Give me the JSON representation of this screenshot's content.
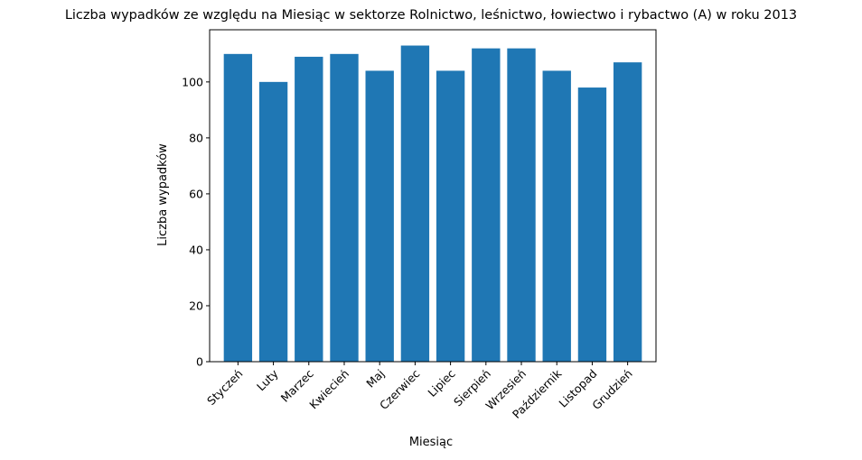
{
  "chart_data": {
    "type": "bar",
    "title": "Liczba wypadków ze względu na Miesiąc w sektorze Rolnictwo, leśnictwo, łowiectwo i rybactwo (A) w roku 2013",
    "xlabel": "Miesiąc",
    "ylabel": "Liczba wypadków",
    "categories": [
      "Styczeń",
      "Luty",
      "Marzec",
      "Kwiecień",
      "Maj",
      "Czerwiec",
      "Lipiec",
      "Sierpień",
      "Wrzesień",
      "Październik",
      "Listopad",
      "Grudzień"
    ],
    "values": [
      110,
      100,
      109,
      110,
      104,
      113,
      104,
      112,
      112,
      104,
      98,
      107
    ],
    "ylim": [
      0,
      118.65
    ],
    "yticks": [
      0,
      20,
      40,
      60,
      80,
      100
    ],
    "bar_color": "#1f77b4",
    "grid": false,
    "legend": false
  }
}
